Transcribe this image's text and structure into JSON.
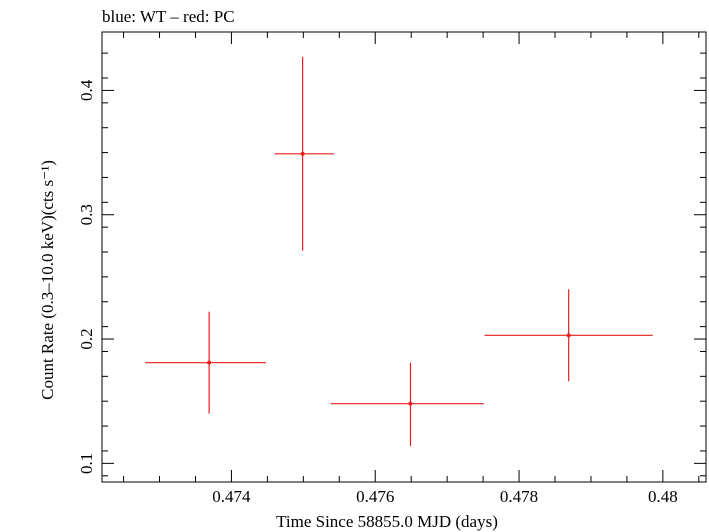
{
  "chart_data": {
    "type": "scatter",
    "title": "blue: WT – red: PC",
    "xlabel": "Time Since 58855.0 MJD (days)",
    "ylabel": "Count Rate (0.3–10.0 keV)(cts s⁻¹)",
    "xlim": [
      0.4722,
      0.4806
    ],
    "ylim": [
      0.085,
      0.447
    ],
    "x_ticks": [
      0.474,
      0.476,
      0.478,
      0.48
    ],
    "x_tick_labels": [
      "0.474",
      "0.476",
      "0.478",
      "0.48"
    ],
    "y_ticks": [
      0.1,
      0.2,
      0.3,
      0.4
    ],
    "y_tick_labels": [
      "0.1",
      "0.2",
      "0.3",
      "0.4"
    ],
    "grid": false,
    "series_color": "#e8201c",
    "points": [
      {
        "x": 0.47369,
        "y": 0.181,
        "xerr_lo": 0.00089,
        "xerr_hi": 0.00079,
        "yerr_lo": 0.041,
        "yerr_hi": 0.041
      },
      {
        "x": 0.47499,
        "y": 0.349,
        "xerr_lo": 0.00039,
        "xerr_hi": 0.00044,
        "yerr_lo": 0.078,
        "yerr_hi": 0.078
      },
      {
        "x": 0.47649,
        "y": 0.148,
        "xerr_lo": 0.00111,
        "xerr_hi": 0.00102,
        "yerr_lo": 0.034,
        "yerr_hi": 0.033
      },
      {
        "x": 0.47869,
        "y": 0.203,
        "xerr_lo": 0.00117,
        "xerr_hi": 0.00117,
        "yerr_lo": 0.037,
        "yerr_hi": 0.037
      }
    ]
  }
}
